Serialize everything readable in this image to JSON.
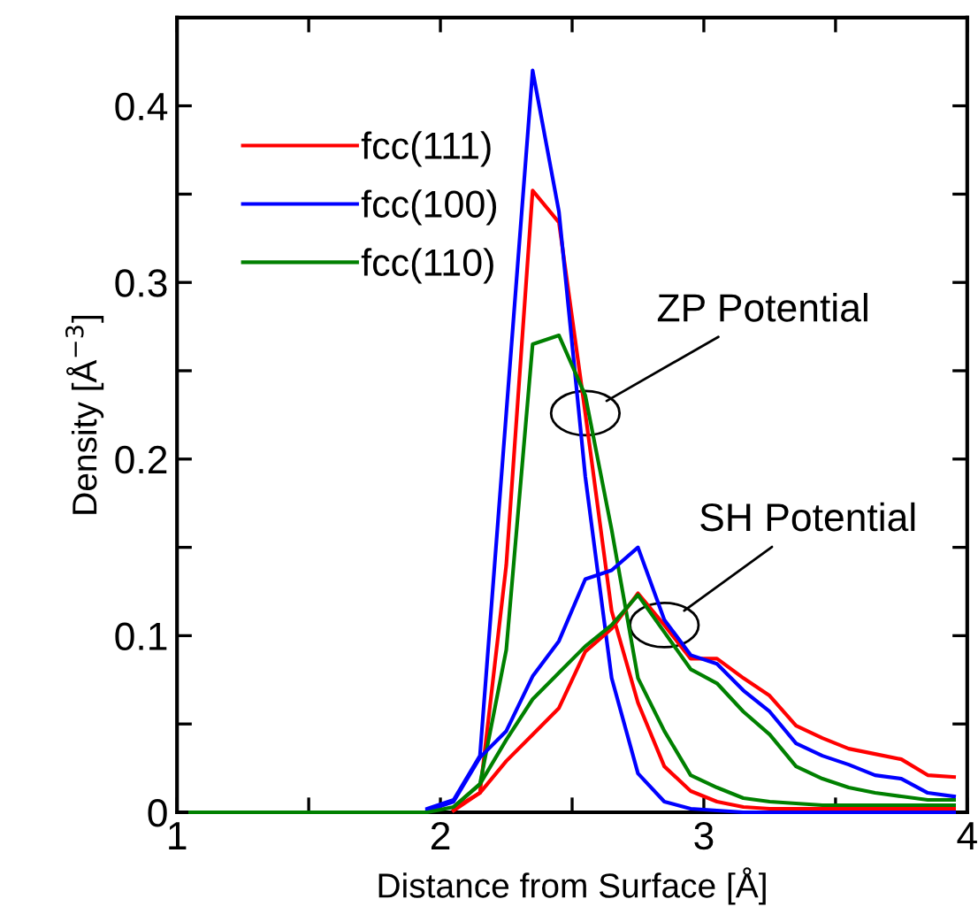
{
  "chart_data": {
    "type": "line",
    "xlabel": "Distance from Surface [Å]",
    "ylabel": "Density [Å$^{−3}$]",
    "x": [
      1.05,
      1.15,
      1.25,
      1.35,
      1.45,
      1.55,
      1.65,
      1.75,
      1.85,
      1.95,
      2.05,
      2.15,
      2.25,
      2.35,
      2.45,
      2.55,
      2.65,
      2.75,
      2.85,
      2.95,
      3.05,
      3.15,
      3.25,
      3.35,
      3.45,
      3.55,
      3.65,
      3.75,
      3.85,
      3.95
    ],
    "series": [
      {
        "name": "fcc(111)",
        "color": "#ff0000",
        "values": [
          null,
          null,
          null,
          null,
          null,
          null,
          null,
          null,
          null,
          null,
          0.001,
          0.011,
          0.14,
          0.352,
          0.334,
          0.226,
          0.114,
          0.062,
          0.026,
          0.012,
          0.006,
          0.003,
          0.002,
          0.002,
          0.002,
          0.002,
          0.002,
          0.002,
          0.002,
          0.002
        ]
      },
      {
        "name": "fcc(100)",
        "color": "#0000ff",
        "values": [
          null,
          null,
          null,
          null,
          null,
          null,
          null,
          null,
          null,
          0.002,
          0.007,
          0.032,
          0.226,
          0.42,
          0.34,
          0.19,
          0.076,
          0.022,
          0.006,
          0.002,
          0.001,
          0,
          0,
          0,
          0,
          0,
          0,
          0,
          0,
          0
        ]
      },
      {
        "name": "fcc(110)",
        "color": "#008000",
        "values": [
          null,
          null,
          null,
          null,
          null,
          null,
          null,
          null,
          null,
          null,
          0.003,
          0.016,
          0.092,
          0.265,
          0.27,
          0.236,
          0.16,
          0.076,
          0.046,
          0.021,
          0.014,
          0.008,
          0.006,
          0.005,
          0.004,
          0.004,
          0.004,
          0.004,
          0.004,
          0.004
        ]
      },
      {
        "color": "#ff0000",
        "values": [
          null,
          null,
          null,
          null,
          null,
          null,
          null,
          null,
          null,
          null,
          0.002,
          0.011,
          0.029,
          0.044,
          0.059,
          0.091,
          0.104,
          0.124,
          0.106,
          0.087,
          0.087,
          0.076,
          0.066,
          0.049,
          0.042,
          0.036,
          0.033,
          0.03,
          0.021,
          0.02
        ]
      },
      {
        "color": "#0000ff",
        "values": [
          null,
          null,
          null,
          null,
          null,
          null,
          null,
          null,
          null,
          0.001,
          0.006,
          0.031,
          0.046,
          0.077,
          0.097,
          0.132,
          0.137,
          0.15,
          0.109,
          0.089,
          0.084,
          0.069,
          0.057,
          0.039,
          0.032,
          0.027,
          0.021,
          0.019,
          0.011,
          0.009
        ]
      },
      {
        "color": "#008000",
        "values": [
          0,
          0,
          0,
          0,
          0,
          0,
          0,
          0,
          0,
          0,
          0.003,
          0.016,
          0.041,
          0.064,
          0.079,
          0.094,
          0.106,
          0.123,
          0.102,
          0.081,
          0.073,
          0.057,
          0.044,
          0.026,
          0.019,
          0.014,
          0.011,
          0.009,
          0.007,
          0.007
        ]
      }
    ],
    "xlim": [
      1,
      4
    ],
    "xticks": [
      1,
      {
        "value": 1.5,
        "label": null
      },
      2,
      {
        "value": 2.5,
        "label": null
      },
      3,
      {
        "value": 3.5,
        "label": null
      },
      4
    ],
    "ylim": [
      0,
      0.45
    ],
    "yticks": [
      0,
      {
        "value": 0.05,
        "label": null
      },
      0.1,
      {
        "value": 0.15,
        "label": null
      },
      0.2,
      {
        "value": 0.25,
        "label": null
      },
      0.3,
      {
        "value": 0.35,
        "label": null
      },
      0.4
    ],
    "annotations": [
      {
        "text": "ZP Potential",
        "x": 2.55,
        "y": 0.226
      },
      {
        "text": "SH Potential",
        "x": 2.85,
        "y": 0.106
      }
    ],
    "legend": "top left",
    "grid": false,
    "marker": "none",
    "line_style": "solid"
  }
}
